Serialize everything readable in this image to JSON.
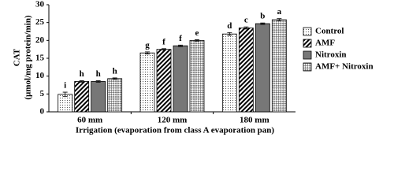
{
  "chart_data": {
    "type": "bar",
    "y_label": [
      "CAT",
      "(µmol/mg protein/min)"
    ],
    "x_label": "Irrigation  (evaporation from class A evaporation pan)",
    "categories": [
      "60 mm",
      "120 mm",
      "180 mm"
    ],
    "series": [
      {
        "name": "Control",
        "color": "#ffffff",
        "pattern": "dots",
        "values": [
          4.9,
          16.5,
          21.8
        ],
        "errors": [
          0.6,
          0.3,
          0.4
        ],
        "letters": [
          "i",
          "g",
          "d"
        ]
      },
      {
        "name": "AMF",
        "color": "#ffffff",
        "pattern": "hatch",
        "values": [
          8.5,
          17.5,
          23.5
        ],
        "errors": [
          0.2,
          0.2,
          0.3
        ],
        "letters": [
          "h",
          "f",
          "c"
        ]
      },
      {
        "name": "Nitroxin",
        "color": "#777777",
        "pattern": "solid",
        "values": [
          8.5,
          18.5,
          24.7
        ],
        "errors": [
          0.2,
          0.2,
          0.2
        ],
        "letters": [
          "h",
          "f",
          "b"
        ]
      },
      {
        "name": "AMF+ Nitroxin",
        "color": "#ffffff",
        "pattern": "checker",
        "values": [
          9.3,
          20.0,
          25.8
        ],
        "errors": [
          0.2,
          0.2,
          0.3
        ],
        "letters": [
          "h",
          "e",
          "a"
        ]
      }
    ],
    "ylim": [
      0,
      30
    ],
    "yticks": [
      0,
      5,
      10,
      15,
      20,
      25,
      30
    ],
    "grid": false,
    "legend": "right"
  }
}
